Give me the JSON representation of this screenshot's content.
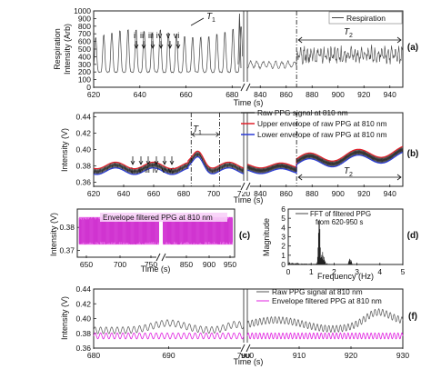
{
  "chart_data": [
    {
      "panel": "(a)",
      "type": "line",
      "ylabel": "Respiration Intensity (Arb)",
      "xlabel": "Time (s)",
      "legend": "Respiration",
      "ylim": [
        0,
        1000
      ],
      "yticks": [
        "0",
        "100",
        "200",
        "300",
        "400",
        "500",
        "600",
        "700",
        "800",
        "900",
        "1000"
      ],
      "left_segment": {
        "xlim": [
          620,
          685
        ],
        "xticks": [
          "620",
          "640",
          "660",
          "680"
        ]
      },
      "right_segment": {
        "xlim": [
          830,
          950
        ],
        "xticks": [
          "840",
          "860",
          "880",
          "900",
          "920",
          "940"
        ]
      },
      "break_label": "//",
      "annotations": {
        "markers": [
          "i",
          "ii",
          "iii",
          "iv",
          "v",
          "vi"
        ],
        "t1": "T",
        "t1_sub": "1",
        "t2": "T",
        "t2_sub": "2"
      },
      "series": [
        {
          "name": "Respiration",
          "color": "#444444"
        }
      ]
    },
    {
      "panel": "(b)",
      "type": "line",
      "ylabel": "Intensity (V)",
      "xlabel": "Time (s)",
      "ylim": [
        0.355,
        0.445
      ],
      "yticks": [
        "0.36",
        "0.38",
        "0.40",
        "0.42",
        "0.44"
      ],
      "left_segment": {
        "xlim": [
          620,
          720
        ],
        "xticks": [
          "620",
          "640",
          "660",
          "680",
          "700",
          "720"
        ]
      },
      "right_segment": {
        "xlim": [
          830,
          950
        ],
        "xticks": [
          "840",
          "860",
          "880",
          "900",
          "920",
          "940"
        ]
      },
      "series": [
        {
          "name": "Raw PPG signal at 810 nm",
          "color": "#333333"
        },
        {
          "name": "Upper envelope of raw PPG at  810 nm",
          "color": "#e0202a"
        },
        {
          "name": "Lower envelope of raw PPG at  810 nm",
          "color": "#2a3bd6"
        }
      ],
      "annotations": {
        "markers": [
          "i",
          "ii",
          "iii",
          "iv",
          "v",
          "vi"
        ],
        "t1": "T",
        "t1_sub": "1",
        "t2": "T",
        "t2_sub": "2"
      }
    },
    {
      "panel": "(c)",
      "type": "line",
      "ylabel": "Intensity (V)",
      "xlabel": "Time (s)",
      "ylim": [
        0.367,
        0.388
      ],
      "yticks": [
        "0.37",
        "0.38"
      ],
      "xticks": [
        "650",
        "700",
        "750",
        "850",
        "900",
        "950"
      ],
      "series": [
        {
          "name": "Envelope filtered PPG at 810 nm",
          "color": "#e020e0"
        }
      ]
    },
    {
      "panel": "(d)",
      "type": "bar",
      "ylabel": "Magnitude",
      "xlabel": "Frequency (Hz)",
      "xlim": [
        0,
        5
      ],
      "ylim": [
        0,
        6
      ],
      "xticks": [
        "0",
        "1",
        "2",
        "3",
        "4",
        "5"
      ],
      "yticks": [
        "0",
        "1",
        "2",
        "3",
        "4",
        "5",
        "6"
      ],
      "legend": [
        "FFT of filtered PPG",
        "from 620-950 s"
      ],
      "peak": {
        "x": 1.35,
        "y": 5.3
      }
    },
    {
      "panel": "(f)",
      "type": "line",
      "ylabel": "Intensity (V)",
      "xlabel": "Time (s)",
      "ylim": [
        0.36,
        0.44
      ],
      "yticks": [
        "0.36",
        "0.38",
        "0.40",
        "0.42",
        "0.44"
      ],
      "left_segment": {
        "xlim": [
          680,
          700
        ],
        "xticks": [
          "680",
          "690",
          "700"
        ]
      },
      "right_segment": {
        "xlim": [
          900,
          930
        ],
        "xticks": [
          "900",
          "910",
          "920",
          "930"
        ]
      },
      "series": [
        {
          "name": "Raw PPG signal at 810 nm",
          "color": "#555555"
        },
        {
          "name": "Envelope filtered PPG at 810 nm",
          "color": "#e020e0"
        }
      ]
    }
  ],
  "labels": {
    "a": "(a)",
    "b": "(b)",
    "c": "(c)",
    "d": "(d)",
    "f": "(f)",
    "time": "Time (s)",
    "intensity": "Intensity (V)"
  }
}
